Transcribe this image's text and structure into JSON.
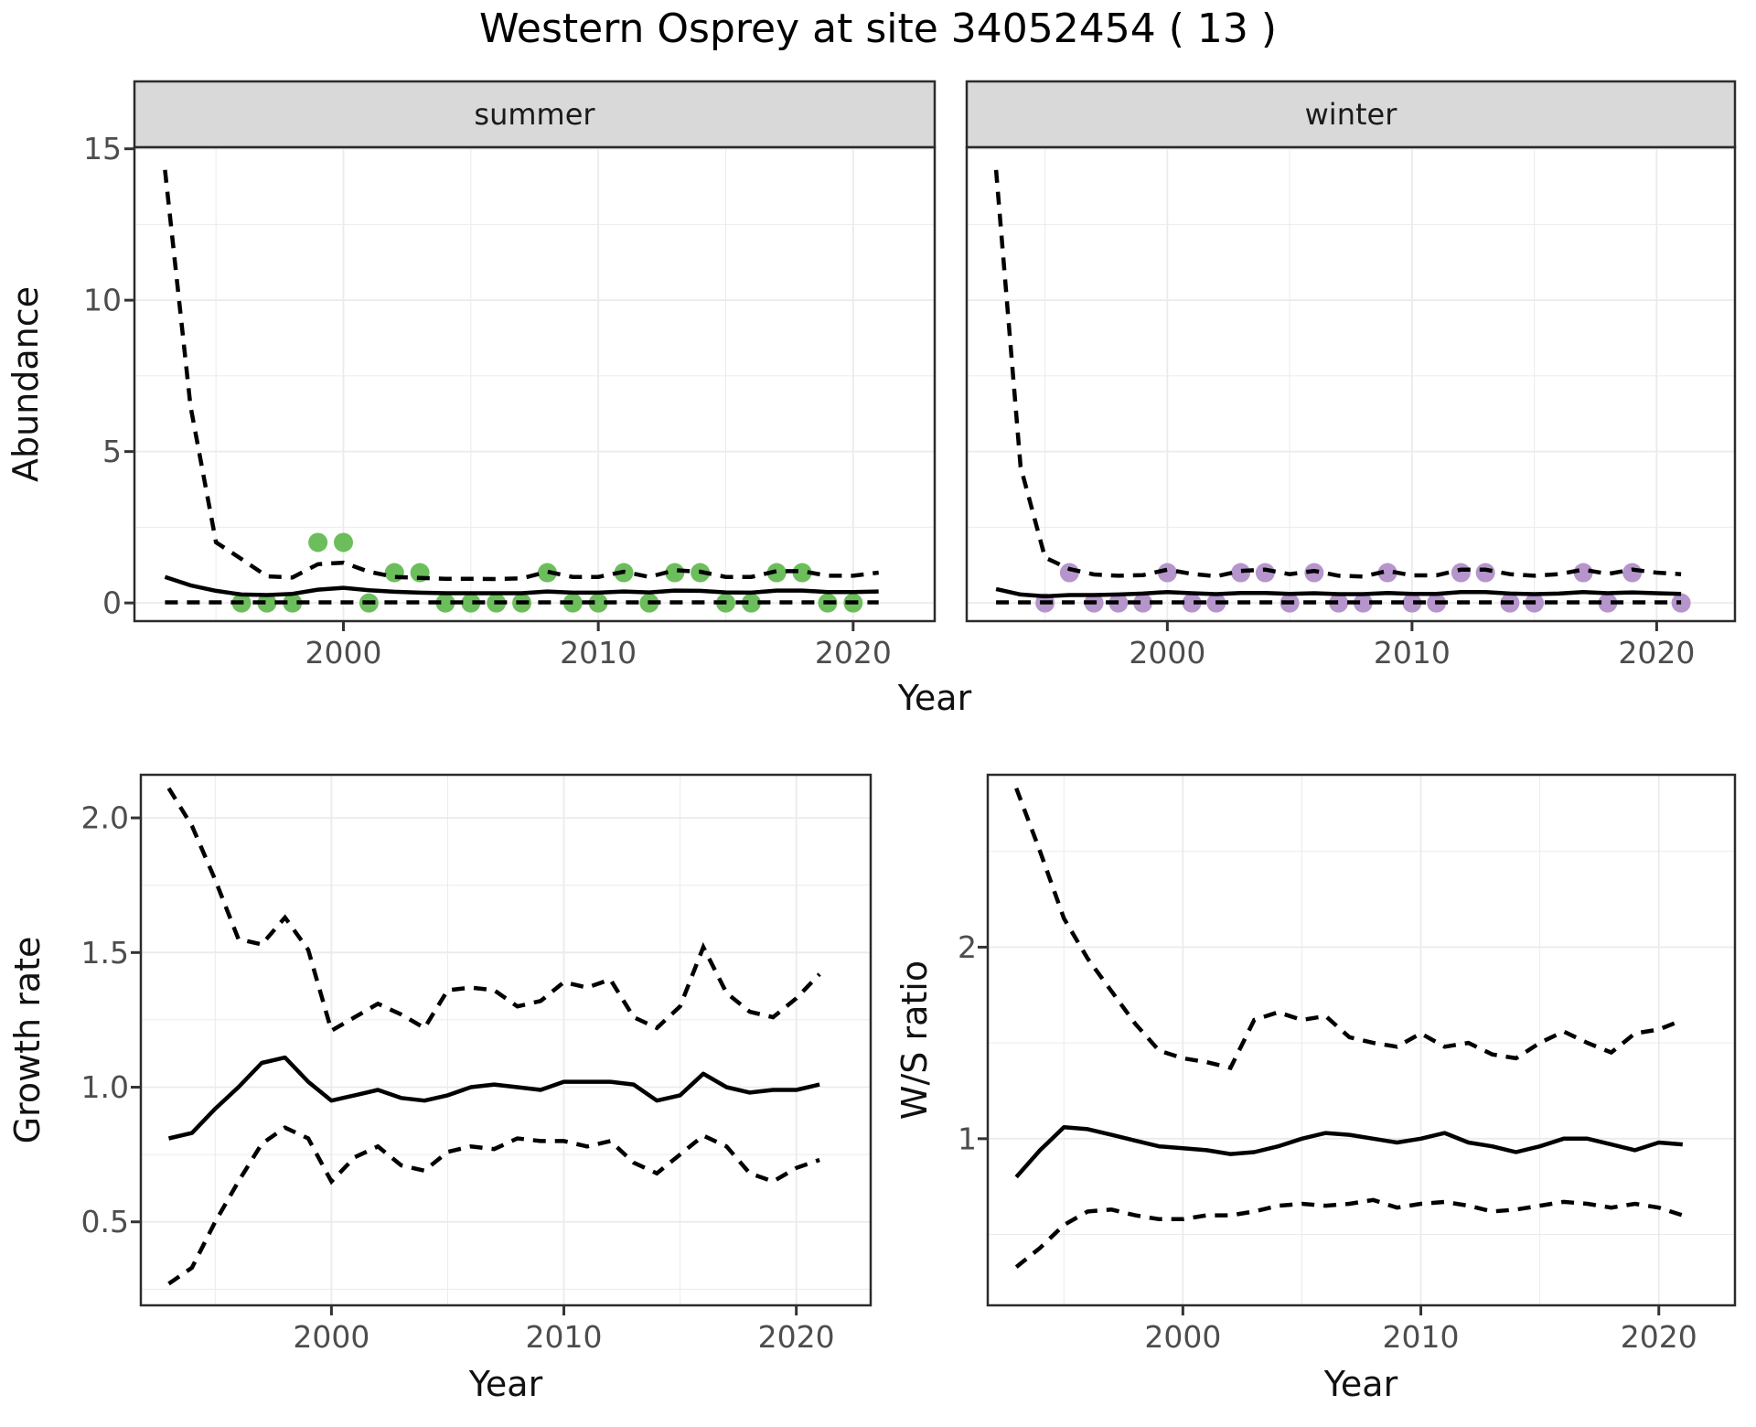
{
  "title": "Western Osprey at site 34052454 ( 13 )",
  "colors": {
    "summer_point": "#6cbe5c",
    "winter_point": "#b595cb",
    "line": "#000000",
    "grid": "#ebebeb",
    "strip_fill": "#d9d9d9",
    "panel_border": "#2b2b2b",
    "tick_mark": "#333333",
    "tick_text": "#4d4d4d"
  },
  "chart_data": [
    {
      "id": "abundance_summer",
      "type": "line",
      "strip": "summer",
      "xlabel": "Year",
      "ylabel": "Abundance",
      "xlim": [
        1991.8,
        2023.2
      ],
      "ylim": [
        -0.6,
        15.05
      ],
      "x_ticks": [
        2000,
        2010,
        2020
      ],
      "x_tick_labels": [
        "2000",
        "2010",
        "2020"
      ],
      "x_minor": [
        1995,
        2005,
        2015
      ],
      "y_ticks": [
        0,
        5,
        10,
        15
      ],
      "y_tick_labels": [
        "0",
        "5",
        "10",
        "15"
      ],
      "y_minor": [
        2.5,
        7.5,
        12.5
      ],
      "grid": true,
      "legend": "none",
      "years": [
        1993,
        1994,
        1995,
        1996,
        1997,
        1998,
        1999,
        2000,
        2001,
        2002,
        2003,
        2004,
        2005,
        2006,
        2007,
        2008,
        2009,
        2010,
        2011,
        2012,
        2013,
        2014,
        2015,
        2016,
        2017,
        2018,
        2019,
        2020,
        2021
      ],
      "median": [
        0.86,
        0.58,
        0.4,
        0.28,
        0.26,
        0.3,
        0.44,
        0.5,
        0.42,
        0.37,
        0.34,
        0.32,
        0.32,
        0.32,
        0.32,
        0.38,
        0.34,
        0.34,
        0.38,
        0.35,
        0.41,
        0.4,
        0.35,
        0.34,
        0.41,
        0.41,
        0.36,
        0.36,
        0.38
      ],
      "ci_upper": [
        14.3,
        6.5,
        2.0,
        1.45,
        0.88,
        0.84,
        1.28,
        1.33,
        1.03,
        0.86,
        0.83,
        0.8,
        0.8,
        0.79,
        0.81,
        1.03,
        0.86,
        0.86,
        1.03,
        0.86,
        1.08,
        1.03,
        0.86,
        0.86,
        1.05,
        1.05,
        0.9,
        0.9,
        1.0
      ],
      "ci_lower": [
        0.02,
        0.02,
        0.02,
        0.02,
        0.02,
        0.02,
        0.02,
        0.02,
        0.02,
        0.02,
        0.02,
        0.02,
        0.02,
        0.02,
        0.02,
        0.02,
        0.02,
        0.02,
        0.02,
        0.02,
        0.02,
        0.02,
        0.02,
        0.02,
        0.02,
        0.02,
        0.02,
        0.02,
        0.02
      ],
      "obs_years": [
        1996,
        1997,
        1998,
        1999,
        2000,
        2001,
        2002,
        2003,
        2004,
        2005,
        2006,
        2007,
        2008,
        2009,
        2010,
        2011,
        2012,
        2013,
        2014,
        2015,
        2016,
        2017,
        2018,
        2019,
        2020
      ],
      "obs_values": [
        0,
        0,
        0,
        2,
        2,
        0,
        1,
        1,
        0,
        0,
        0,
        0,
        1,
        0,
        0,
        1,
        0,
        1,
        1,
        0,
        0,
        1,
        1,
        0,
        0
      ],
      "point_color": "#6cbe5c"
    },
    {
      "id": "abundance_winter",
      "type": "line",
      "strip": "winter",
      "xlabel": "Year",
      "ylabel": "Abundance",
      "xlim": [
        1991.8,
        2023.2
      ],
      "ylim": [
        -0.6,
        15.05
      ],
      "x_ticks": [
        2000,
        2010,
        2020
      ],
      "x_tick_labels": [
        "2000",
        "2010",
        "2020"
      ],
      "x_minor": [
        1995,
        2005,
        2015
      ],
      "y_ticks": [
        0,
        5,
        10,
        15
      ],
      "y_tick_labels": [],
      "y_minor": [
        2.5,
        7.5,
        12.5
      ],
      "grid": true,
      "legend": "none",
      "years": [
        1993,
        1994,
        1995,
        1996,
        1997,
        1998,
        1999,
        2000,
        2001,
        2002,
        2003,
        2004,
        2005,
        2006,
        2007,
        2008,
        2009,
        2010,
        2011,
        2012,
        2013,
        2014,
        2015,
        2016,
        2017,
        2018,
        2019,
        2020,
        2021
      ],
      "median": [
        0.46,
        0.28,
        0.22,
        0.26,
        0.26,
        0.28,
        0.31,
        0.36,
        0.32,
        0.29,
        0.33,
        0.33,
        0.3,
        0.32,
        0.29,
        0.29,
        0.33,
        0.3,
        0.3,
        0.36,
        0.36,
        0.31,
        0.29,
        0.31,
        0.36,
        0.32,
        0.35,
        0.32,
        0.3
      ],
      "ci_upper": [
        14.3,
        4.5,
        1.5,
        1.12,
        0.94,
        0.9,
        0.92,
        1.1,
        0.96,
        0.88,
        1.06,
        1.1,
        0.95,
        1.06,
        0.9,
        0.87,
        1.06,
        0.91,
        0.91,
        1.1,
        1.1,
        0.95,
        0.9,
        0.95,
        1.1,
        0.96,
        1.1,
        1.0,
        0.95
      ],
      "ci_lower": [
        0.02,
        0.02,
        0.02,
        0.02,
        0.02,
        0.02,
        0.02,
        0.02,
        0.02,
        0.02,
        0.02,
        0.02,
        0.02,
        0.02,
        0.02,
        0.02,
        0.02,
        0.02,
        0.02,
        0.02,
        0.02,
        0.02,
        0.02,
        0.02,
        0.02,
        0.02,
        0.02,
        0.02,
        0.02
      ],
      "obs_years": [
        1995,
        1996,
        1997,
        1998,
        1999,
        2000,
        2001,
        2002,
        2003,
        2004,
        2005,
        2006,
        2007,
        2008,
        2009,
        2010,
        2011,
        2012,
        2013,
        2014,
        2015,
        2017,
        2018,
        2019,
        2021
      ],
      "obs_values": [
        0,
        1,
        0,
        0,
        0,
        1,
        0,
        0,
        1,
        1,
        0,
        1,
        0,
        0,
        1,
        0,
        0,
        1,
        1,
        0,
        0,
        1,
        0,
        1,
        0
      ],
      "point_color": "#b595cb"
    },
    {
      "id": "growth_rate",
      "type": "line",
      "strip": "",
      "xlabel": "Year",
      "ylabel": "Growth rate",
      "xlim": [
        1991.8,
        2023.2
      ],
      "ylim": [
        0.19,
        2.16
      ],
      "x_ticks": [
        2000,
        2010,
        2020
      ],
      "x_tick_labels": [
        "2000",
        "2010",
        "2020"
      ],
      "x_minor": [
        1995,
        2005,
        2015
      ],
      "y_ticks": [
        0.5,
        1.0,
        1.5,
        2.0
      ],
      "y_tick_labels": [
        "0.5",
        "1.0",
        "1.5",
        "2.0"
      ],
      "y_minor": [
        0.25,
        0.75,
        1.25,
        1.75
      ],
      "grid": true,
      "legend": "none",
      "years": [
        1993,
        1994,
        1995,
        1996,
        1997,
        1998,
        1999,
        2000,
        2001,
        2002,
        2003,
        2004,
        2005,
        2006,
        2007,
        2008,
        2009,
        2010,
        2011,
        2012,
        2013,
        2014,
        2015,
        2016,
        2017,
        2018,
        2019,
        2020,
        2021
      ],
      "median": [
        0.81,
        0.83,
        0.92,
        1.0,
        1.09,
        1.11,
        1.02,
        0.95,
        0.97,
        0.99,
        0.96,
        0.95,
        0.97,
        1.0,
        1.01,
        1.0,
        0.99,
        1.02,
        1.02,
        1.02,
        1.01,
        0.95,
        0.97,
        1.05,
        1.0,
        0.98,
        0.99,
        0.99,
        1.01
      ],
      "ci_upper": [
        2.11,
        1.97,
        1.77,
        1.55,
        1.53,
        1.63,
        1.51,
        1.21,
        1.26,
        1.31,
        1.27,
        1.22,
        1.36,
        1.37,
        1.36,
        1.3,
        1.32,
        1.39,
        1.37,
        1.4,
        1.26,
        1.22,
        1.3,
        1.52,
        1.35,
        1.28,
        1.26,
        1.33,
        1.42
      ],
      "ci_lower": [
        0.27,
        0.33,
        0.5,
        0.65,
        0.79,
        0.85,
        0.81,
        0.65,
        0.74,
        0.78,
        0.71,
        0.69,
        0.76,
        0.78,
        0.77,
        0.81,
        0.8,
        0.8,
        0.78,
        0.8,
        0.72,
        0.68,
        0.75,
        0.82,
        0.78,
        0.68,
        0.65,
        0.7,
        0.73
      ]
    },
    {
      "id": "ws_ratio",
      "type": "line",
      "strip": "",
      "xlabel": "Year",
      "ylabel": "W/S ratio",
      "xlim": [
        1991.8,
        2023.2
      ],
      "ylim": [
        0.13,
        2.9
      ],
      "x_ticks": [
        2000,
        2010,
        2020
      ],
      "x_tick_labels": [
        "2000",
        "2010",
        "2020"
      ],
      "x_minor": [
        1995,
        2005,
        2015
      ],
      "y_ticks": [
        1,
        2
      ],
      "y_tick_labels": [
        "1",
        "2"
      ],
      "y_minor": [
        0.5,
        1.5,
        2.5
      ],
      "grid": true,
      "legend": "none",
      "years": [
        1993,
        1994,
        1995,
        1996,
        1997,
        1998,
        1999,
        2000,
        2001,
        2002,
        2003,
        2004,
        2005,
        2006,
        2007,
        2008,
        2009,
        2010,
        2011,
        2012,
        2013,
        2014,
        2015,
        2016,
        2017,
        2018,
        2019,
        2020,
        2021
      ],
      "median": [
        0.8,
        0.94,
        1.06,
        1.05,
        1.02,
        0.99,
        0.96,
        0.95,
        0.94,
        0.92,
        0.93,
        0.96,
        1.0,
        1.03,
        1.02,
        1.0,
        0.98,
        1.0,
        1.03,
        0.98,
        0.96,
        0.93,
        0.96,
        1.0,
        1.0,
        0.97,
        0.94,
        0.98,
        0.97
      ],
      "ci_upper": [
        2.83,
        2.5,
        2.15,
        1.94,
        1.77,
        1.6,
        1.46,
        1.42,
        1.4,
        1.37,
        1.62,
        1.66,
        1.62,
        1.64,
        1.53,
        1.5,
        1.48,
        1.55,
        1.48,
        1.5,
        1.44,
        1.42,
        1.5,
        1.56,
        1.5,
        1.45,
        1.55,
        1.57,
        1.62
      ],
      "ci_lower": [
        0.33,
        0.43,
        0.55,
        0.62,
        0.63,
        0.6,
        0.58,
        0.58,
        0.6,
        0.6,
        0.62,
        0.65,
        0.66,
        0.65,
        0.66,
        0.68,
        0.64,
        0.66,
        0.67,
        0.65,
        0.62,
        0.63,
        0.65,
        0.67,
        0.66,
        0.64,
        0.66,
        0.64,
        0.6
      ]
    }
  ]
}
